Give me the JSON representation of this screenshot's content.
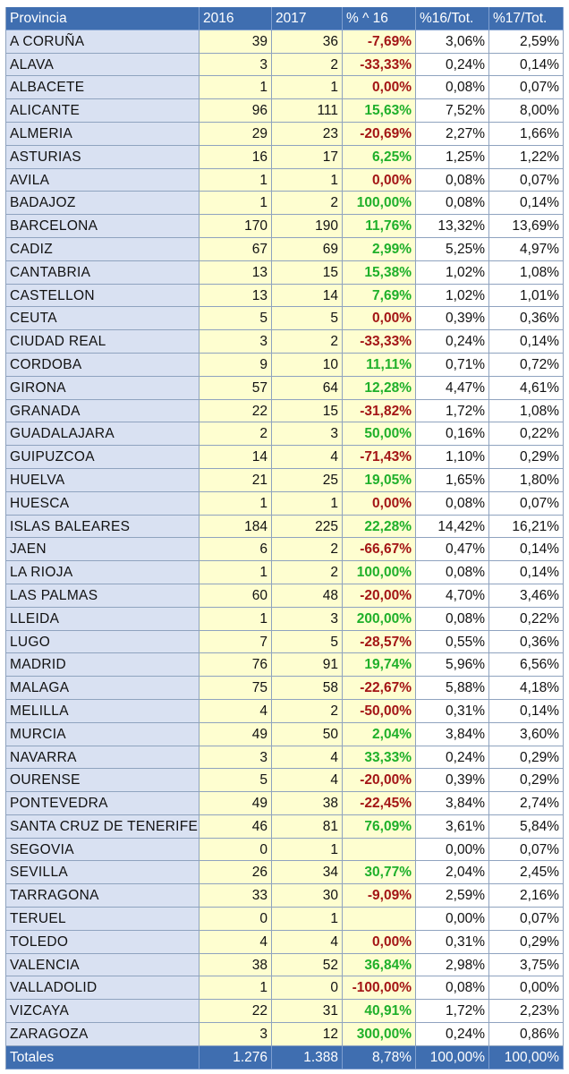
{
  "headers": [
    "Provincia",
    "2016",
    "2017",
    "% ^ 16",
    "%16/Tot.",
    "%17/Tot."
  ],
  "rows": [
    [
      "A CORUÑA",
      "39",
      "36",
      "-7,69%",
      "3,06%",
      "2,59%"
    ],
    [
      "ALAVA",
      "3",
      "2",
      "-33,33%",
      "0,24%",
      "0,14%"
    ],
    [
      "ALBACETE",
      "1",
      "1",
      "0,00%",
      "0,08%",
      "0,07%"
    ],
    [
      "ALICANTE",
      "96",
      "111",
      "15,63%",
      "7,52%",
      "8,00%"
    ],
    [
      "ALMERIA",
      "29",
      "23",
      "-20,69%",
      "2,27%",
      "1,66%"
    ],
    [
      "ASTURIAS",
      "16",
      "17",
      "6,25%",
      "1,25%",
      "1,22%"
    ],
    [
      "AVILA",
      "1",
      "1",
      "0,00%",
      "0,08%",
      "0,07%"
    ],
    [
      "BADAJOZ",
      "1",
      "2",
      "100,00%",
      "0,08%",
      "0,14%"
    ],
    [
      "BARCELONA",
      "170",
      "190",
      "11,76%",
      "13,32%",
      "13,69%"
    ],
    [
      "CADIZ",
      "67",
      "69",
      "2,99%",
      "5,25%",
      "4,97%"
    ],
    [
      "CANTABRIA",
      "13",
      "15",
      "15,38%",
      "1,02%",
      "1,08%"
    ],
    [
      "CASTELLON",
      "13",
      "14",
      "7,69%",
      "1,02%",
      "1,01%"
    ],
    [
      "CEUTA",
      "5",
      "5",
      "0,00%",
      "0,39%",
      "0,36%"
    ],
    [
      "CIUDAD REAL",
      "3",
      "2",
      "-33,33%",
      "0,24%",
      "0,14%"
    ],
    [
      "CORDOBA",
      "9",
      "10",
      "11,11%",
      "0,71%",
      "0,72%"
    ],
    [
      "GIRONA",
      "57",
      "64",
      "12,28%",
      "4,47%",
      "4,61%"
    ],
    [
      "GRANADA",
      "22",
      "15",
      "-31,82%",
      "1,72%",
      "1,08%"
    ],
    [
      "GUADALAJARA",
      "2",
      "3",
      "50,00%",
      "0,16%",
      "0,22%"
    ],
    [
      "GUIPUZCOA",
      "14",
      "4",
      "-71,43%",
      "1,10%",
      "0,29%"
    ],
    [
      "HUELVA",
      "21",
      "25",
      "19,05%",
      "1,65%",
      "1,80%"
    ],
    [
      "HUESCA",
      "1",
      "1",
      "0,00%",
      "0,08%",
      "0,07%"
    ],
    [
      "ISLAS BALEARES",
      "184",
      "225",
      "22,28%",
      "14,42%",
      "16,21%"
    ],
    [
      "JAEN",
      "6",
      "2",
      "-66,67%",
      "0,47%",
      "0,14%"
    ],
    [
      "LA RIOJA",
      "1",
      "2",
      "100,00%",
      "0,08%",
      "0,14%"
    ],
    [
      "LAS PALMAS",
      "60",
      "48",
      "-20,00%",
      "4,70%",
      "3,46%"
    ],
    [
      "LLEIDA",
      "1",
      "3",
      "200,00%",
      "0,08%",
      "0,22%"
    ],
    [
      "LUGO",
      "7",
      "5",
      "-28,57%",
      "0,55%",
      "0,36%"
    ],
    [
      "MADRID",
      "76",
      "91",
      "19,74%",
      "5,96%",
      "6,56%"
    ],
    [
      "MALAGA",
      "75",
      "58",
      "-22,67%",
      "5,88%",
      "4,18%"
    ],
    [
      "MELILLA",
      "4",
      "2",
      "-50,00%",
      "0,31%",
      "0,14%"
    ],
    [
      "MURCIA",
      "49",
      "50",
      "2,04%",
      "3,84%",
      "3,60%"
    ],
    [
      "NAVARRA",
      "3",
      "4",
      "33,33%",
      "0,24%",
      "0,29%"
    ],
    [
      "OURENSE",
      "5",
      "4",
      "-20,00%",
      "0,39%",
      "0,29%"
    ],
    [
      "PONTEVEDRA",
      "49",
      "38",
      "-22,45%",
      "3,84%",
      "2,74%"
    ],
    [
      "SANTA CRUZ DE TENERIFE",
      "46",
      "81",
      "76,09%",
      "3,61%",
      "5,84%"
    ],
    [
      "SEGOVIA",
      "0",
      "1",
      "",
      "0,00%",
      "0,07%"
    ],
    [
      "SEVILLA",
      "26",
      "34",
      "30,77%",
      "2,04%",
      "2,45%"
    ],
    [
      "TARRAGONA",
      "33",
      "30",
      "-9,09%",
      "2,59%",
      "2,16%"
    ],
    [
      "TERUEL",
      "0",
      "1",
      "",
      "0,00%",
      "0,07%"
    ],
    [
      "TOLEDO",
      "4",
      "4",
      "0,00%",
      "0,31%",
      "0,29%"
    ],
    [
      "VALENCIA",
      "38",
      "52",
      "36,84%",
      "2,98%",
      "3,75%"
    ],
    [
      "VALLADOLID",
      "1",
      "0",
      "-100,00%",
      "0,08%",
      "0,00%"
    ],
    [
      "VIZCAYA",
      "22",
      "31",
      "40,91%",
      "1,72%",
      "2,23%"
    ],
    [
      "ZARAGOZA",
      "3",
      "12",
      "300,00%",
      "0,24%",
      "0,86%"
    ]
  ],
  "totals": [
    "Totales",
    "1.276",
    "1.388",
    "8,78%",
    "100,00%",
    "100,00%"
  ],
  "colors": {
    "header_bg": "#3f6eb0",
    "province_bg": "#d9e1f2",
    "value_bg": "#fefed0",
    "negative": "#a31515",
    "positive": "#1fb02a"
  }
}
